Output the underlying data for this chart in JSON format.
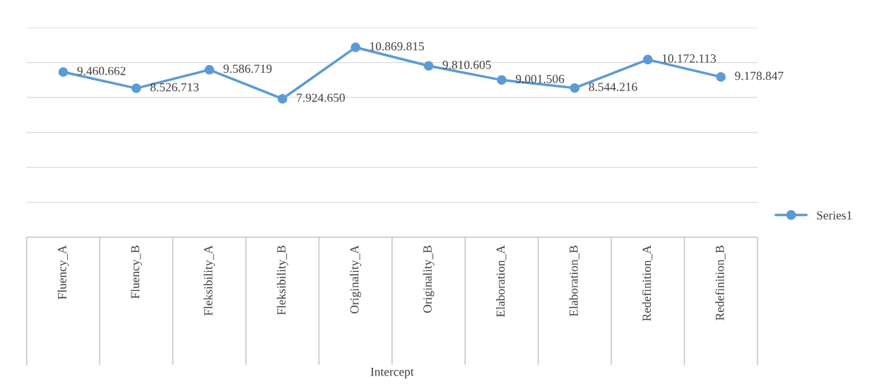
{
  "chart_data": {
    "type": "line",
    "xlabel": "Intercept",
    "categories": [
      "Fluency_A",
      "Fluency_B",
      "Fleksibility_A",
      "Fleksibility_B",
      "Originality_A",
      "Originality_B",
      "Elaboration_A",
      "Elaboration_B",
      "Redefinition_A",
      "Redefinition_B"
    ],
    "series": [
      {
        "name": "Series1",
        "color": "#5b9bd5",
        "values": [
          9460662,
          8526713,
          9586719,
          7924650,
          10869815,
          9810605,
          9001506,
          8544216,
          10172113,
          9178847
        ],
        "value_labels": [
          "9.460.662",
          "8.526.713",
          "9.586.719",
          "7.924.650",
          "10.869.815",
          "9.810.605",
          "9.001.506",
          "8.544.216",
          "10.172.113",
          "9.178.847"
        ]
      }
    ],
    "ylim": [
      0,
      12000000
    ],
    "yticks": [
      {
        "value": 0,
        "label": null
      },
      {
        "value": 2000000,
        "label": null
      },
      {
        "value": 4000000,
        "label": null
      },
      {
        "value": 6000000,
        "label": null
      },
      {
        "value": 8000000,
        "label": null
      },
      {
        "value": 10000000,
        "label": null
      },
      {
        "value": 12000000,
        "label": null
      }
    ],
    "tick_labels": "x",
    "grid": "y",
    "legend": "right",
    "marker": "circle",
    "line_style": "solid"
  }
}
